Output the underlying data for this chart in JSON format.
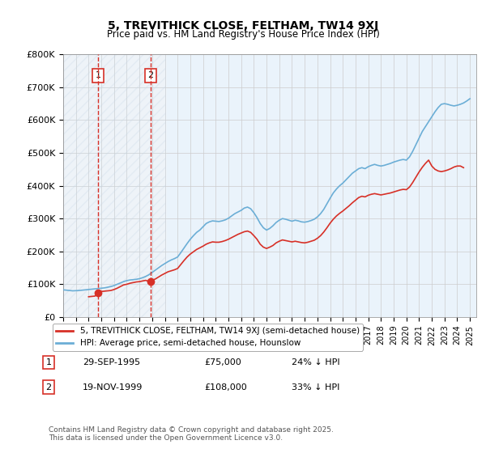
{
  "title": "5, TREVITHICK CLOSE, FELTHAM, TW14 9XJ",
  "subtitle": "Price paid vs. HM Land Registry's House Price Index (HPI)",
  "ylabel": "",
  "ylim": [
    0,
    800000
  ],
  "yticks": [
    0,
    100000,
    200000,
    300000,
    400000,
    500000,
    600000,
    700000,
    800000
  ],
  "ytick_labels": [
    "£0",
    "£100K",
    "£200K",
    "£300K",
    "£400K",
    "£500K",
    "£600K",
    "£700K",
    "£800K"
  ],
  "xlim_start": 1993.0,
  "xlim_end": 2025.5,
  "hpi_color": "#6baed6",
  "property_color": "#d73027",
  "hatch_color": "#c8d8e8",
  "grid_color": "#cccccc",
  "bg_color": "#eaf3fb",
  "transaction1": {
    "date": "29-SEP-1995",
    "price": 75000,
    "hpi_diff": "24% ↓ HPI",
    "year": 1995.75,
    "label": "1"
  },
  "transaction2": {
    "date": "19-NOV-1999",
    "price": 108000,
    "hpi_diff": "33% ↓ HPI",
    "year": 1999.88,
    "label": "2"
  },
  "legend_property": "5, TREVITHICK CLOSE, FELTHAM, TW14 9XJ (semi-detached house)",
  "legend_hpi": "HPI: Average price, semi-detached house, Hounslow",
  "footnote": "Contains HM Land Registry data © Crown copyright and database right 2025.\nThis data is licensed under the Open Government Licence v3.0.",
  "hpi_data_x": [
    1993.0,
    1993.25,
    1993.5,
    1993.75,
    1994.0,
    1994.25,
    1994.5,
    1994.75,
    1995.0,
    1995.25,
    1995.5,
    1995.75,
    1996.0,
    1996.25,
    1996.5,
    1996.75,
    1997.0,
    1997.25,
    1997.5,
    1997.75,
    1998.0,
    1998.25,
    1998.5,
    1998.75,
    1999.0,
    1999.25,
    1999.5,
    1999.75,
    2000.0,
    2000.25,
    2000.5,
    2000.75,
    2001.0,
    2001.25,
    2001.5,
    2001.75,
    2002.0,
    2002.25,
    2002.5,
    2002.75,
    2003.0,
    2003.25,
    2003.5,
    2003.75,
    2004.0,
    2004.25,
    2004.5,
    2004.75,
    2005.0,
    2005.25,
    2005.5,
    2005.75,
    2006.0,
    2006.25,
    2006.5,
    2006.75,
    2007.0,
    2007.25,
    2007.5,
    2007.75,
    2008.0,
    2008.25,
    2008.5,
    2008.75,
    2009.0,
    2009.25,
    2009.5,
    2009.75,
    2010.0,
    2010.25,
    2010.5,
    2010.75,
    2011.0,
    2011.25,
    2011.5,
    2011.75,
    2012.0,
    2012.25,
    2012.5,
    2012.75,
    2013.0,
    2013.25,
    2013.5,
    2013.75,
    2014.0,
    2014.25,
    2014.5,
    2014.75,
    2015.0,
    2015.25,
    2015.5,
    2015.75,
    2016.0,
    2016.25,
    2016.5,
    2016.75,
    2017.0,
    2017.25,
    2017.5,
    2017.75,
    2018.0,
    2018.25,
    2018.5,
    2018.75,
    2019.0,
    2019.25,
    2019.5,
    2019.75,
    2020.0,
    2020.25,
    2020.5,
    2020.75,
    2021.0,
    2021.25,
    2021.5,
    2021.75,
    2022.0,
    2022.25,
    2022.5,
    2022.75,
    2023.0,
    2023.25,
    2023.5,
    2023.75,
    2024.0,
    2024.25,
    2024.5,
    2024.75,
    2025.0
  ],
  "hpi_data_y": [
    83000,
    82000,
    81000,
    80000,
    80500,
    81000,
    82000,
    83000,
    84000,
    85000,
    86000,
    87000,
    88000,
    89000,
    91000,
    93000,
    96000,
    100000,
    104000,
    108000,
    111000,
    113000,
    114000,
    115000,
    117000,
    120000,
    124000,
    129000,
    136000,
    143000,
    150000,
    157000,
    163000,
    169000,
    174000,
    178000,
    183000,
    196000,
    210000,
    224000,
    237000,
    248000,
    258000,
    265000,
    275000,
    285000,
    290000,
    293000,
    292000,
    291000,
    293000,
    296000,
    301000,
    308000,
    315000,
    320000,
    325000,
    332000,
    335000,
    330000,
    318000,
    303000,
    285000,
    272000,
    265000,
    270000,
    278000,
    288000,
    295000,
    300000,
    298000,
    295000,
    292000,
    295000,
    293000,
    290000,
    289000,
    291000,
    294000,
    298000,
    305000,
    315000,
    328000,
    345000,
    362000,
    378000,
    390000,
    400000,
    408000,
    418000,
    428000,
    438000,
    445000,
    452000,
    455000,
    452000,
    458000,
    462000,
    465000,
    462000,
    460000,
    462000,
    465000,
    468000,
    472000,
    475000,
    478000,
    480000,
    478000,
    488000,
    505000,
    525000,
    545000,
    565000,
    580000,
    595000,
    610000,
    625000,
    638000,
    648000,
    650000,
    648000,
    645000,
    643000,
    645000,
    648000,
    652000,
    658000,
    665000
  ],
  "property_data_x": [
    1995.0,
    1995.25,
    1995.5,
    1995.75,
    1996.0,
    1996.25,
    1996.5,
    1996.75,
    1997.0,
    1997.25,
    1997.5,
    1997.75,
    1998.0,
    1998.25,
    1998.5,
    1998.75,
    1999.0,
    1999.25,
    1999.5,
    1999.75,
    2000.0,
    2000.25,
    2000.5,
    2000.75,
    2001.0,
    2001.25,
    2001.5,
    2001.75,
    2002.0,
    2002.25,
    2002.5,
    2002.75,
    2003.0,
    2003.25,
    2003.5,
    2003.75,
    2004.0,
    2004.25,
    2004.5,
    2004.75,
    2005.0,
    2005.25,
    2005.5,
    2005.75,
    2006.0,
    2006.25,
    2006.5,
    2006.75,
    2007.0,
    2007.25,
    2007.5,
    2007.75,
    2008.0,
    2008.25,
    2008.5,
    2008.75,
    2009.0,
    2009.25,
    2009.5,
    2009.75,
    2010.0,
    2010.25,
    2010.5,
    2010.75,
    2011.0,
    2011.25,
    2011.5,
    2011.75,
    2012.0,
    2012.25,
    2012.5,
    2012.75,
    2013.0,
    2013.25,
    2013.5,
    2013.75,
    2014.0,
    2014.25,
    2014.5,
    2014.75,
    2015.0,
    2015.25,
    2015.5,
    2015.75,
    2016.0,
    2016.25,
    2016.5,
    2016.75,
    2017.0,
    2017.25,
    2017.5,
    2017.75,
    2018.0,
    2018.25,
    2018.5,
    2018.75,
    2019.0,
    2019.25,
    2019.5,
    2019.75,
    2020.0,
    2020.25,
    2020.5,
    2020.75,
    2021.0,
    2021.25,
    2021.5,
    2021.75,
    2022.0,
    2022.25,
    2022.5,
    2022.75,
    2023.0,
    2023.25,
    2023.5,
    2023.75,
    2024.0,
    2024.25,
    2024.5
  ],
  "property_data_y": [
    62000,
    63000,
    64000,
    75000,
    78000,
    79000,
    80000,
    81000,
    84000,
    88000,
    93000,
    98000,
    100000,
    103000,
    105000,
    107000,
    108000,
    110000,
    112000,
    108000,
    112000,
    116000,
    122000,
    128000,
    133000,
    138000,
    141000,
    144000,
    148000,
    160000,
    172000,
    183000,
    192000,
    199000,
    206000,
    211000,
    216000,
    222000,
    226000,
    229000,
    228000,
    228000,
    230000,
    233000,
    237000,
    242000,
    247000,
    252000,
    256000,
    260000,
    262000,
    258000,
    248000,
    237000,
    222000,
    213000,
    209000,
    213000,
    218000,
    226000,
    231000,
    235000,
    233000,
    231000,
    229000,
    231000,
    229000,
    227000,
    226000,
    228000,
    231000,
    234000,
    240000,
    248000,
    259000,
    272000,
    286000,
    298000,
    308000,
    316000,
    323000,
    331000,
    339000,
    348000,
    356000,
    364000,
    368000,
    366000,
    371000,
    374000,
    376000,
    374000,
    372000,
    374000,
    376000,
    378000,
    381000,
    384000,
    387000,
    389000,
    388000,
    396000,
    410000,
    426000,
    442000,
    456000,
    468000,
    478000,
    460000,
    450000,
    445000,
    443000,
    445000,
    448000,
    452000,
    457000,
    460000,
    460000,
    455000
  ]
}
